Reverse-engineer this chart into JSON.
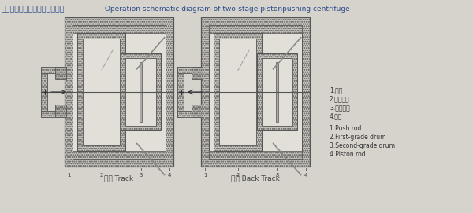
{
  "bg_color": "#d6d2cc",
  "title_zh": "双级活塞推料离心机工作示意图",
  "title_en": " Operation schematic diagram of two-stage pistonpushing centrifuge",
  "title_color": "#2b4b8c",
  "label_zh": [
    "1.霍斗",
    "2.一级鼓装",
    "3.二级鼓装",
    "4.活板"
  ],
  "label_en": [
    "1.Push rod",
    "2.First-grade drum",
    "3.Second-grade drum",
    "4.Piston rod"
  ],
  "caption_left": "进模 Track",
  "caption_right": "返箱 Back Track",
  "caption_color": "#444444",
  "line_color": "#555555",
  "arrow_color": "#333333",
  "wall_fill": "#c8c5be",
  "wall_dot": "#a8a5a0",
  "inner_fill": "#e2dfd8",
  "drum_fill": "#d0cdc6",
  "piston_fill": "#b8b5ae"
}
